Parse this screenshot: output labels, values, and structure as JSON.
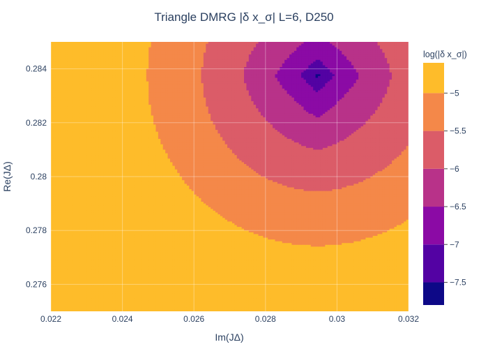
{
  "chart_data": {
    "type": "contour",
    "title": "Triangle DMRG |δ x_σ| L=6, D250",
    "xlabel": "Im(JΔ)",
    "ylabel": "Re(JΔ)",
    "xlim": [
      0.022,
      0.032
    ],
    "ylim": [
      0.275,
      0.285
    ],
    "x_ticks": [
      0.022,
      0.024,
      0.026,
      0.028,
      0.03,
      0.032
    ],
    "x_tick_labels": [
      "0.022",
      "0.024",
      "0.026",
      "0.028",
      "0.03",
      "0.032"
    ],
    "y_ticks": [
      0.276,
      0.278,
      0.28,
      0.282,
      0.284
    ],
    "y_tick_labels": [
      "0.276",
      "0.278",
      "0.28",
      "0.282",
      "0.284"
    ],
    "colorbar": {
      "title": "log(|δ x_σ|)",
      "range": [
        -7.8,
        -4.6
      ],
      "ticks": [
        -5,
        -5.5,
        -6,
        -6.5,
        -7,
        -7.5
      ],
      "tick_labels": [
        "−5",
        "−5.5",
        "−6",
        "−6.5",
        "−7",
        "−7.5"
      ]
    },
    "levels": [
      -7.5,
      -7,
      -6.5,
      -6,
      -5.5,
      -5
    ],
    "minimum": {
      "x": 0.02945,
      "y": 0.28375,
      "value": -7.8
    },
    "band_colors": [
      "#0d0887",
      "#5302a3",
      "#8b0aa5",
      "#b83289",
      "#db5c68",
      "#f48849",
      "#febc2a",
      "#f0f921"
    ],
    "grid": true,
    "legend": "colorbar-right"
  }
}
